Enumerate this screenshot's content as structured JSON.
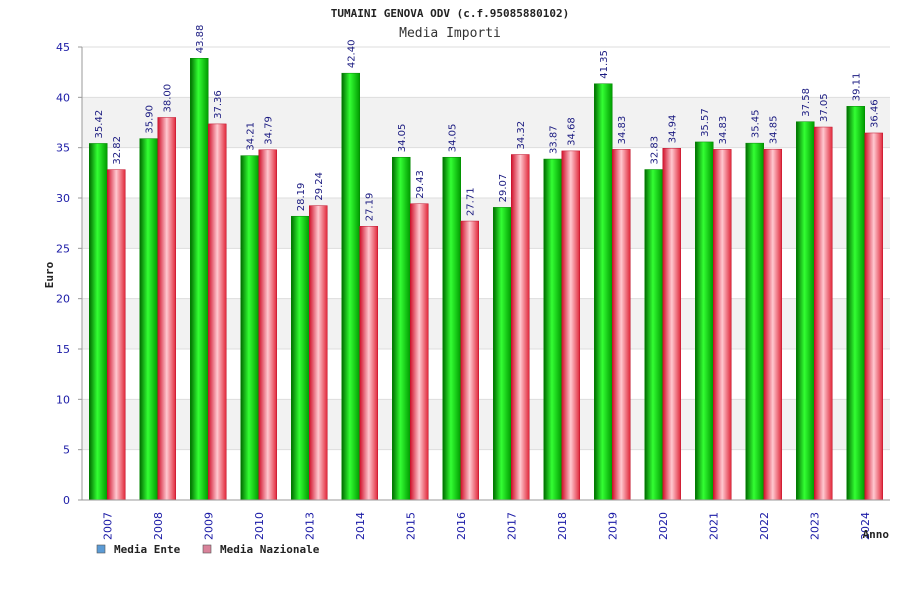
{
  "chart_data": {
    "type": "bar",
    "title": "TUMAINI GENOVA ODV (c.f.95085880102)",
    "subtitle": "Media Importi",
    "xlabel": "Anno",
    "ylabel": "Euro",
    "ylim": [
      0,
      45
    ],
    "yticks": [
      "0",
      "5",
      "10",
      "15",
      "20",
      "25",
      "30",
      "35",
      "40",
      "45"
    ],
    "grid": true,
    "legend_position": "bottom-left",
    "categories": [
      "2007",
      "2008",
      "2009",
      "2010",
      "2013",
      "2014",
      "2015",
      "2016",
      "2017",
      "2018",
      "2019",
      "2020",
      "2021",
      "2022",
      "2023",
      "2024"
    ],
    "series": [
      {
        "name": "Media Ente",
        "color": "#00b000",
        "legend_color": "#5b9bd5",
        "values": [
          35.42,
          35.9,
          43.88,
          34.21,
          28.19,
          42.4,
          34.05,
          34.05,
          29.07,
          33.87,
          41.35,
          32.83,
          35.57,
          35.45,
          37.58,
          39.11
        ],
        "labels": [
          "35.42",
          "35.90",
          "43.88",
          "34.21",
          "28.19",
          "42.40",
          "34.05",
          "34.05",
          "29.07",
          "33.87",
          "41.35",
          "32.83",
          "35.57",
          "35.45",
          "37.58",
          "39.11"
        ]
      },
      {
        "name": "Media Nazionale",
        "color": "#e8283a",
        "legend_color": "#d9829a",
        "values": [
          32.82,
          38.0,
          37.36,
          34.79,
          29.24,
          27.19,
          29.43,
          27.71,
          34.32,
          34.68,
          34.83,
          34.94,
          34.83,
          34.85,
          37.05,
          36.46
        ],
        "labels": [
          "32.82",
          "38.00",
          "37.36",
          "34.79",
          "29.24",
          "27.19",
          "29.43",
          "27.71",
          "34.32",
          "34.68",
          "34.83",
          "34.94",
          "34.83",
          "34.85",
          "37.05",
          "36.46"
        ]
      }
    ]
  }
}
